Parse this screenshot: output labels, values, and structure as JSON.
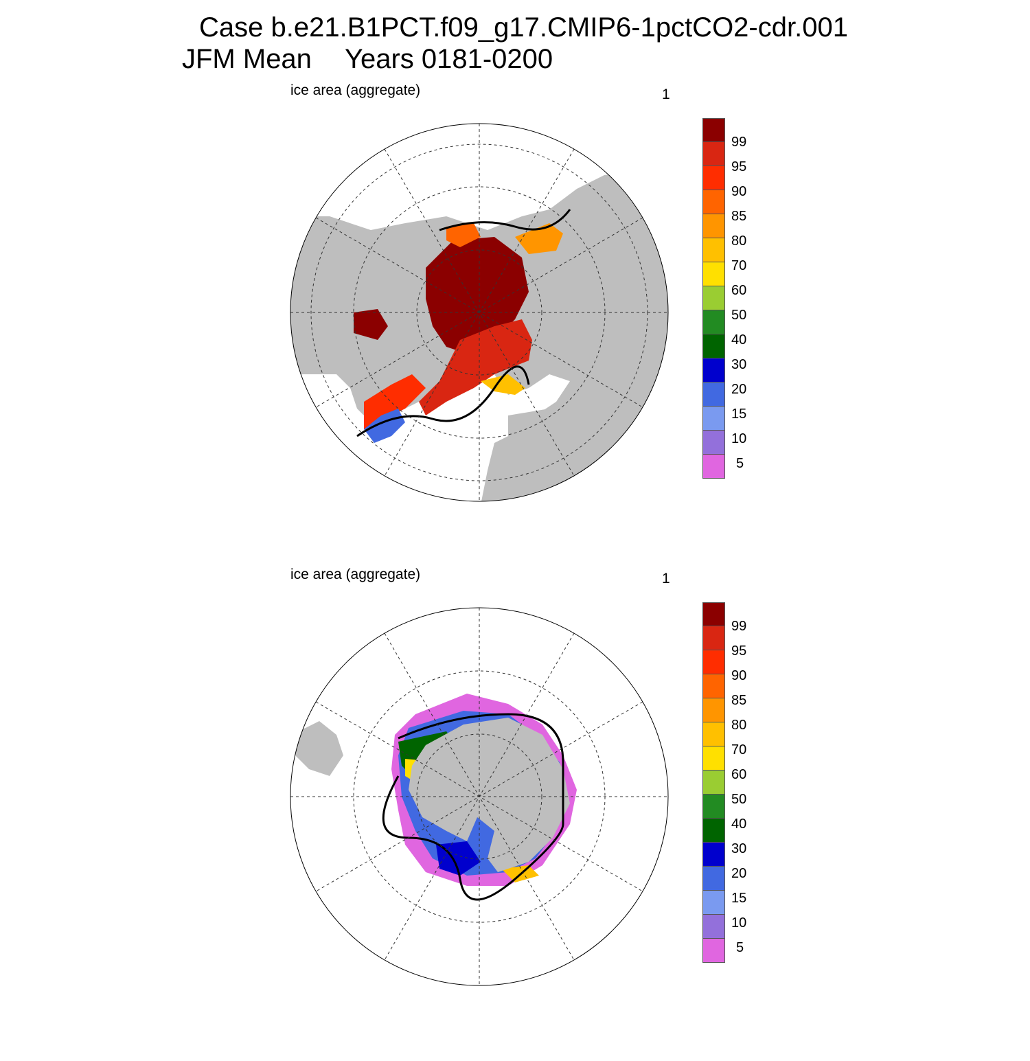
{
  "header": {
    "line1": "Case b.e21.B1PCT.f09_g17.CMIP6-1pctCO2-cdr.001",
    "line2_left": "JFM Mean",
    "line2_right": "Years 0181-0200"
  },
  "colors": {
    "land": "#bebebe",
    "ocean": "#ffffff",
    "contour": "#000000",
    "scale": [
      "#e066e0",
      "#9370db",
      "#7a9af0",
      "#4169e1",
      "#0000cd",
      "#006400",
      "#228b22",
      "#9acd32",
      "#ffe000",
      "#ffc000",
      "#ff9500",
      "#ff6400",
      "#ff2d00",
      "#d92612",
      "#8b0000"
    ]
  },
  "colorbar": {
    "labels": [
      "99",
      "95",
      "90",
      "85",
      "80",
      "70",
      "60",
      "50",
      "40",
      "30",
      "20",
      "15",
      "10",
      "5"
    ]
  },
  "panels": [
    {
      "hemisphere": "north",
      "label_left": "ice area  (aggregate)",
      "label_right": "1"
    },
    {
      "hemisphere": "south",
      "label_left": "ice area  (aggregate)",
      "label_right": "1"
    }
  ]
}
